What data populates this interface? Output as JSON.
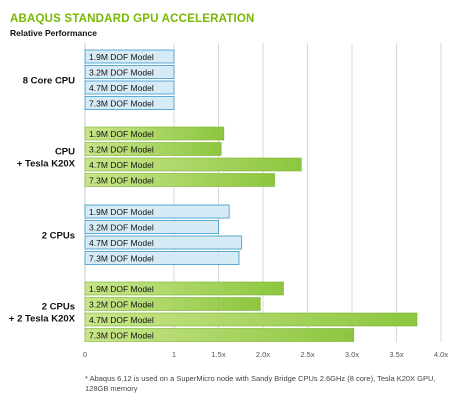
{
  "title": "ABAQUS STANDARD GPU ACCELERATION",
  "subtitle": "Relative Performance",
  "footnote": "* Abaqus 6.12 is used on a SuperMicro node with Sandy Bridge CPUs 2.6GHz (8 core), Tesla K20X GPU, 128GB memory",
  "colors": {
    "cpu_fill": "#d6ebf5",
    "cpu_stroke": "#4aa3d0",
    "gpu_fill": "#8cc63f",
    "gpu_light": "#c9e58a",
    "title": "#76b900",
    "grid": "#cfcfcf"
  },
  "chart_data": {
    "type": "bar",
    "orientation": "horizontal",
    "xlim": [
      0,
      4.0
    ],
    "x_ticks": [
      "0",
      "1",
      "1.5x",
      "2.0x",
      "2.5x",
      "3.0x",
      "3.5x",
      "4.0x"
    ],
    "x_tick_values": [
      0,
      1,
      1.5,
      2.0,
      2.5,
      3.0,
      3.5,
      4.0
    ],
    "grid": true,
    "groups": [
      {
        "label": [
          "8 Core CPU"
        ],
        "style": "cpu",
        "bars": [
          {
            "label": "1.9M DOF Model",
            "value": 1.0
          },
          {
            "label": "3.2M DOF Model",
            "value": 1.0
          },
          {
            "label": "4.7M DOF Model",
            "value": 1.0
          },
          {
            "label": "7.3M DOF Model",
            "value": 1.0
          }
        ]
      },
      {
        "label": [
          "CPU",
          "+ Tesla K20X"
        ],
        "style": "gpu",
        "bars": [
          {
            "label": "1.9M DOF Model",
            "value": 1.56
          },
          {
            "label": "3.2M DOF Model",
            "value": 1.53
          },
          {
            "label": "4.7M DOF Model",
            "value": 2.43
          },
          {
            "label": "7.3M DOF Model",
            "value": 2.13
          }
        ]
      },
      {
        "label": [
          "2 CPUs"
        ],
        "style": "cpu",
        "bars": [
          {
            "label": "1.9M DOF Model",
            "value": 1.62
          },
          {
            "label": "3.2M DOF Model",
            "value": 1.5
          },
          {
            "label": "4.7M DOF Model",
            "value": 1.76
          },
          {
            "label": "7.3M DOF Model",
            "value": 1.73
          }
        ]
      },
      {
        "label": [
          "2 CPUs",
          "+ 2 Tesla K20X"
        ],
        "style": "gpu",
        "bars": [
          {
            "label": "1.9M DOF Model",
            "value": 2.23
          },
          {
            "label": "3.2M DOF Model",
            "value": 1.97
          },
          {
            "label": "4.7M DOF Model",
            "value": 3.73
          },
          {
            "label": "7.3M DOF Model",
            "value": 3.02
          }
        ]
      }
    ]
  }
}
